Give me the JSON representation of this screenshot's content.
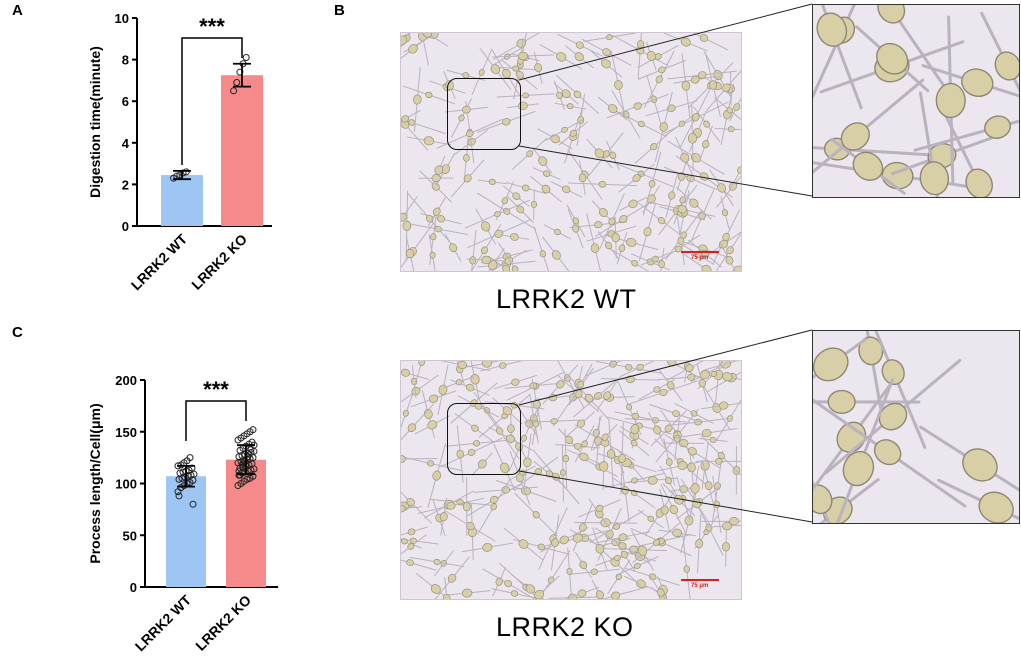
{
  "panels": {
    "a": "A",
    "b": "B",
    "c": "C"
  },
  "chart_data": [
    {
      "type": "bar",
      "panel": "A",
      "categories": [
        "LRRK2 WT",
        "LRRK2 KO"
      ],
      "values": [
        2.45,
        7.25
      ],
      "error": [
        0.2,
        0.55
      ],
      "points": [
        [
          2.3,
          2.4,
          2.45,
          2.55,
          2.6
        ],
        [
          6.5,
          6.9,
          7.4,
          7.8,
          8.1
        ]
      ],
      "colors": [
        "#9ec6f5",
        "#f68a8a"
      ],
      "ylabel": "Digestion time(minute)",
      "ylim": [
        0,
        10
      ],
      "yticks": [
        0,
        2,
        4,
        6,
        8,
        10
      ],
      "significance": "***"
    },
    {
      "type": "bar",
      "panel": "C",
      "categories": [
        "LRRK2 WT",
        "LRRK2 KO"
      ],
      "values": [
        107,
        123
      ],
      "error": [
        10,
        14
      ],
      "points": [
        [
          92,
          96,
          98,
          100,
          101,
          103,
          104,
          105,
          106,
          107,
          108,
          109,
          110,
          111,
          112,
          113,
          115,
          117,
          118,
          120,
          122,
          125,
          80,
          88
        ],
        [
          98,
          100,
          102,
          104,
          105,
          107,
          108,
          110,
          111,
          112,
          113,
          114,
          115,
          116,
          117,
          118,
          119,
          120,
          121,
          122,
          123,
          124,
          125,
          126,
          127,
          128,
          129,
          130,
          131,
          132,
          134,
          136,
          138,
          140,
          142,
          144,
          146,
          148,
          150,
          152,
          112,
          118,
          121,
          126,
          133,
          137,
          108,
          115,
          119
        ]
      ],
      "colors": [
        "#9ec6f5",
        "#f68a8a"
      ],
      "ylabel": "Process length/Cell(μm)",
      "ylim": [
        0,
        200
      ],
      "yticks": [
        0,
        50,
        100,
        150,
        200
      ],
      "significance": "***"
    }
  ],
  "images": {
    "wt_label": "LRRK2 WT",
    "ko_label": "LRRK2 KO",
    "scale_text": "75 μm"
  },
  "colors": {
    "micro_bg": "#ece6ee",
    "cell": "#d8cfa6"
  }
}
